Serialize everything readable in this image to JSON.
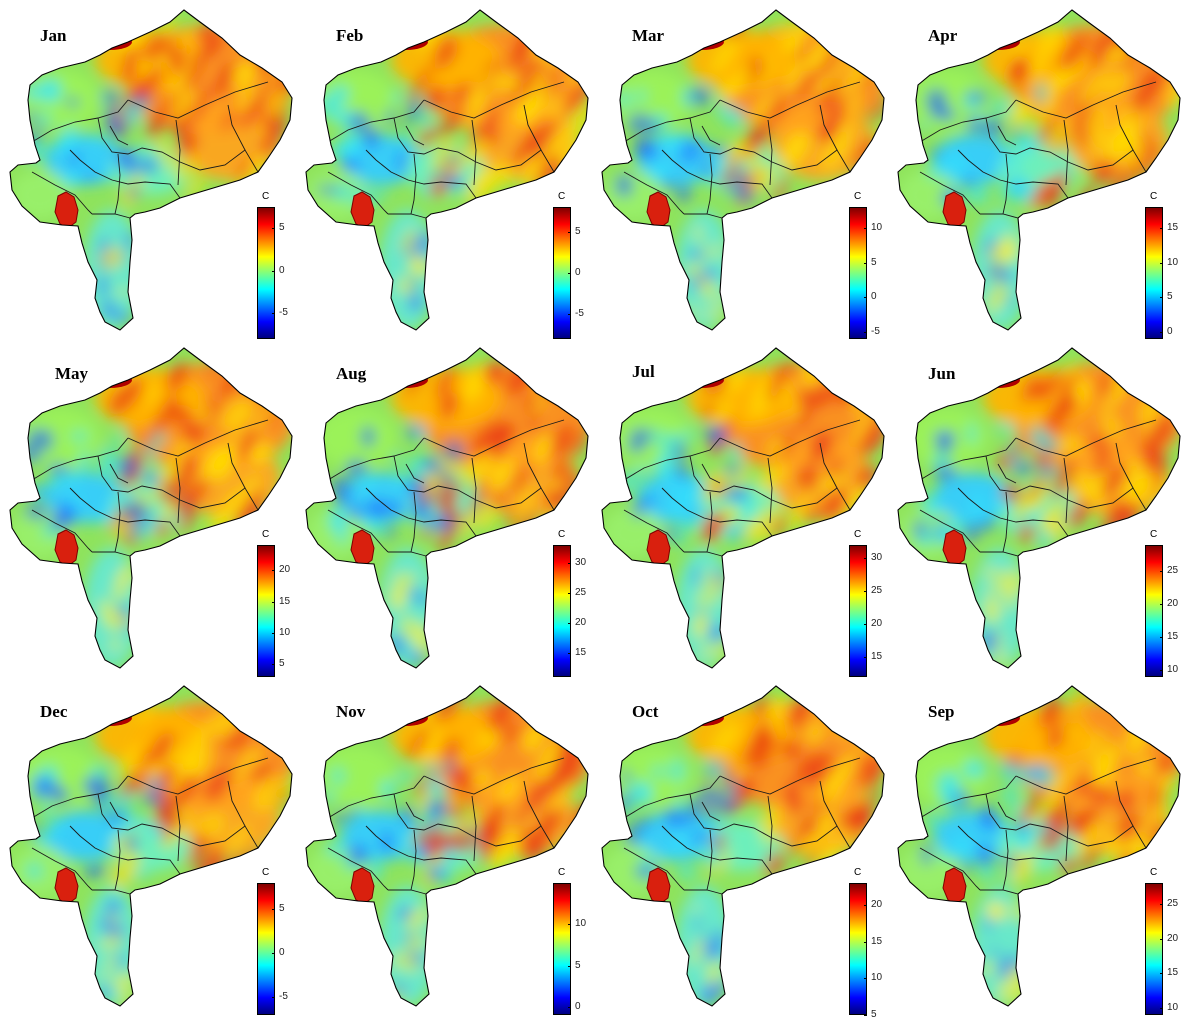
{
  "colormap": [
    "#00007f",
    "#0000ff",
    "#007fff",
    "#00ffff",
    "#7fff7f",
    "#ffff00",
    "#ff7f00",
    "#ff0000",
    "#7f0000"
  ],
  "unit": "C",
  "panels": [
    {
      "month": "Jan",
      "ticks": [
        "5",
        "0",
        "-5"
      ],
      "tick_values": [
        5,
        0,
        -5
      ],
      "range": [
        -8,
        7.5
      ]
    },
    {
      "month": "Feb",
      "ticks": [
        "5",
        "0",
        "-5"
      ],
      "tick_values": [
        5,
        0,
        -5
      ],
      "range": [
        -8,
        8
      ]
    },
    {
      "month": "Mar",
      "ticks": [
        "10",
        "5",
        "0",
        "-5"
      ],
      "tick_values": [
        10,
        5,
        0,
        -5
      ],
      "range": [
        -6,
        13
      ]
    },
    {
      "month": "Apr",
      "ticks": [
        "15",
        "10",
        "5",
        "0"
      ],
      "tick_values": [
        15,
        10,
        5,
        0
      ],
      "range": [
        -1,
        18
      ]
    },
    {
      "month": "May",
      "ticks": [
        "20",
        "15",
        "10",
        "5"
      ],
      "tick_values": [
        20,
        15,
        10,
        5
      ],
      "range": [
        3,
        24
      ]
    },
    {
      "month": "Aug",
      "ticks": [
        "30",
        "25",
        "20",
        "15"
      ],
      "tick_values": [
        30,
        25,
        20,
        15
      ],
      "range": [
        11,
        33
      ]
    },
    {
      "month": "Jul",
      "ticks": [
        "30",
        "25",
        "20",
        "15"
      ],
      "tick_values": [
        30,
        25,
        20,
        15
      ],
      "range": [
        12,
        32
      ]
    },
    {
      "month": "Jun",
      "ticks": [
        "25",
        "20",
        "15",
        "10"
      ],
      "tick_values": [
        25,
        20,
        15,
        10
      ],
      "range": [
        9,
        29
      ]
    },
    {
      "month": "Dec",
      "ticks": [
        "5",
        "0",
        "-5"
      ],
      "tick_values": [
        5,
        0,
        -5
      ],
      "range": [
        -7,
        8
      ]
    },
    {
      "month": "Nov",
      "ticks": [
        "10",
        "5",
        "0"
      ],
      "tick_values": [
        10,
        5,
        0
      ],
      "range": [
        -1,
        15
      ]
    },
    {
      "month": "Oct",
      "ticks": [
        "20",
        "15",
        "10",
        "5"
      ],
      "tick_values": [
        20,
        15,
        10,
        5
      ],
      "range": [
        5,
        23
      ]
    },
    {
      "month": "Sep",
      "ticks": [
        "25",
        "20",
        "15",
        "10"
      ],
      "tick_values": [
        25,
        20,
        15,
        10
      ],
      "range": [
        9,
        28
      ]
    }
  ]
}
